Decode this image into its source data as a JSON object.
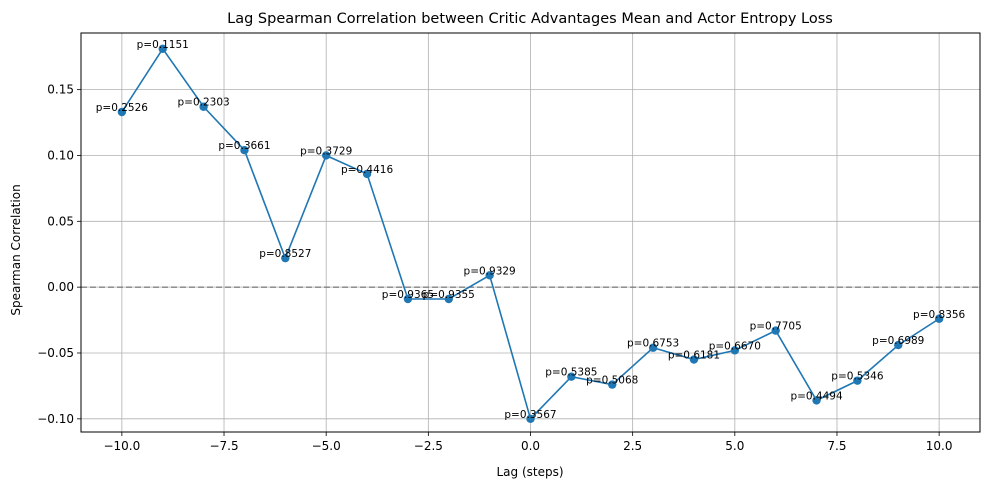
{
  "chart_data": {
    "type": "line",
    "title": "Lag Spearman Correlation between Critic Advantages Mean and Actor Entropy Loss",
    "xlabel": "Lag (steps)",
    "ylabel": "Spearman Correlation",
    "xlim": [
      -11,
      11
    ],
    "ylim": [
      -0.11,
      0.193
    ],
    "xticks": [
      -10.0,
      -7.5,
      -5.0,
      -2.5,
      0.0,
      2.5,
      5.0,
      7.5,
      10.0
    ],
    "xtick_labels": [
      "−10.0",
      "−7.5",
      "−5.0",
      "−2.5",
      "0.0",
      "2.5",
      "5.0",
      "7.5",
      "10.0"
    ],
    "yticks": [
      -0.1,
      -0.05,
      0.0,
      0.05,
      0.1,
      0.15
    ],
    "ytick_labels": [
      "−0.10",
      "−0.05",
      "0.00",
      "0.05",
      "0.10",
      "0.15"
    ],
    "grid": true,
    "reference_line": {
      "y": 0.0,
      "style": "dashed",
      "color": "#808080"
    },
    "colors": {
      "line": "#1f77b4",
      "marker": "#1f77b4",
      "grid": "#b0b0b0"
    },
    "series": [
      {
        "x": [
          -10,
          -9,
          -8,
          -7,
          -6,
          -5,
          -4,
          -3,
          -2,
          -1,
          0,
          1,
          2,
          3,
          4,
          5,
          6,
          7,
          8,
          9,
          10
        ],
        "values": [
          0.133,
          0.181,
          0.137,
          0.104,
          0.022,
          0.1,
          0.086,
          -0.009,
          -0.009,
          0.009,
          -0.1,
          -0.068,
          -0.074,
          -0.046,
          -0.055,
          -0.048,
          -0.033,
          -0.086,
          -0.071,
          -0.044,
          -0.024
        ],
        "annotations": [
          "p=0.2526",
          "p=0.1151",
          "p=0.2303",
          "p=0.3661",
          "p=0.8527",
          "p=0.3729",
          "p=0.4416",
          "p=0.9365",
          "p=0.9355",
          "p=0.9329",
          "p=0.3567",
          "p=0.5385",
          "p=0.5068",
          "p=0.6753",
          "p=0.6181",
          "p=0.6670",
          "p=0.7705",
          "p=0.4494",
          "p=0.5346",
          "p=0.6989",
          "p=0.8356"
        ]
      }
    ]
  }
}
